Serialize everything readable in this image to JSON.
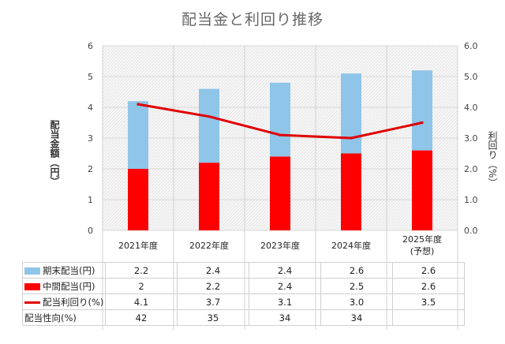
{
  "title": "配当金と利回り推移",
  "colors": {
    "period_end": "#8EC5E8",
    "interim": "#FF0000",
    "yield": "#E00000",
    "grid": "#d9d9d9"
  },
  "chart_data": {
    "type": "bar",
    "stacked": true,
    "title": "配当金と利回り推移",
    "categories": [
      "2021年度",
      "2022年度",
      "2023年度",
      "2024年度",
      "2025年度\n(予想)"
    ],
    "series": [
      {
        "name": "中間配当(円)",
        "type": "bar",
        "axis": "left",
        "values": [
          2,
          2.2,
          2.4,
          2.5,
          2.6
        ]
      },
      {
        "name": "期末配当(円)",
        "type": "bar",
        "axis": "left",
        "values": [
          2.2,
          2.4,
          2.4,
          2.6,
          2.6
        ]
      },
      {
        "name": "配当利回り(%)",
        "type": "line",
        "axis": "right",
        "values": [
          4.1,
          3.7,
          3.1,
          3.0,
          3.5
        ]
      }
    ],
    "ylabel": "配当金額（円）",
    "ylabel_right": "利回り（%）",
    "ylim": [
      0,
      6
    ],
    "ylim_right": [
      0,
      6
    ],
    "yticks": [
      "0",
      "1",
      "2",
      "3",
      "4",
      "5",
      "6"
    ],
    "yticks_right": [
      "0.0",
      "1.0",
      "2.0",
      "3.0",
      "4.0",
      "5.0",
      "6.0"
    ],
    "grid": true,
    "legend": "data-table"
  },
  "table": {
    "rows": [
      {
        "label": "期末配当(円)",
        "swatch": "box",
        "color": "#8EC5E8",
        "values": [
          "2.2",
          "2.4",
          "2.4",
          "2.6",
          "2.6"
        ]
      },
      {
        "label": "中間配当(円)",
        "swatch": "box",
        "color": "#FF0000",
        "values": [
          "2",
          "2.2",
          "2.4",
          "2.5",
          "2.6"
        ]
      },
      {
        "label": "配当利回り(%)",
        "swatch": "line",
        "color": "#E00000",
        "values": [
          "4.1",
          "3.7",
          "3.1",
          "3.0",
          "3.5"
        ]
      },
      {
        "label": "配当性向(%)",
        "swatch": "none",
        "color": "",
        "values": [
          "42",
          "35",
          "34",
          "34",
          ""
        ]
      }
    ]
  }
}
